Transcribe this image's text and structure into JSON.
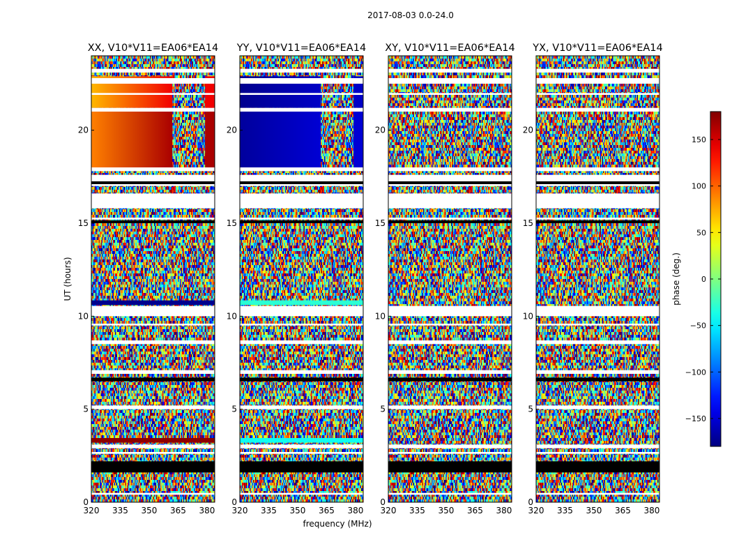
{
  "chart_data": {
    "type": "heatmap",
    "suptitle": "2017-08-03 0.0-24.0",
    "xlabel": "frequency (MHz)",
    "ylabel": "UT (hours)",
    "xlim": [
      320,
      384
    ],
    "ylim": [
      0,
      24
    ],
    "x_ticks": [
      320,
      335,
      350,
      365,
      380
    ],
    "y_ticks": [
      0,
      5,
      10,
      15,
      20
    ],
    "panels": [
      {
        "title": "XX, V10*V11=EA06*EA14",
        "segments": [
          {
            "y": [
              21.2,
              22.9
            ],
            "mode": "grad",
            "phase": [
              70,
              140
            ],
            "edge": 362
          },
          {
            "y": [
              17.8,
              21.0
            ],
            "mode": "grad",
            "phase": [
              90,
              165
            ],
            "edge": 362
          },
          {
            "y": [
              10.6,
              10.85
            ],
            "mode": "solid",
            "phase": -175
          },
          {
            "y": [
              3.2,
              3.45
            ],
            "mode": "solid",
            "phase": 175
          }
        ]
      },
      {
        "title": "YY, V10*V11=EA06*EA14",
        "segments": [
          {
            "y": [
              21.2,
              22.9
            ],
            "mode": "grad",
            "phase": [
              -175,
              -155
            ],
            "edge": 362
          },
          {
            "y": [
              17.8,
              21.0
            ],
            "mode": "grad",
            "phase": [
              -170,
              -150
            ],
            "edge": 362
          },
          {
            "y": [
              10.6,
              10.85
            ],
            "mode": "solid",
            "phase": -30
          },
          {
            "y": [
              3.2,
              3.45
            ],
            "mode": "solid",
            "phase": -40
          }
        ]
      },
      {
        "title": "XY, V10*V11=EA06*EA14",
        "segments": []
      },
      {
        "title": "YX, V10*V11=EA06*EA14",
        "segments": []
      }
    ],
    "flagged_rows": [
      [
        23.1,
        23.3
      ],
      [
        22.5,
        22.8
      ],
      [
        21.9,
        22.0
      ],
      [
        21.0,
        21.2
      ],
      [
        17.8,
        18.0
      ],
      [
        17.0,
        17.6
      ],
      [
        15.8,
        16.6
      ],
      [
        15.2,
        15.3
      ],
      [
        10.0,
        10.55
      ],
      [
        9.5,
        9.6
      ],
      [
        8.5,
        8.7
      ],
      [
        6.9,
        7.1
      ],
      [
        5.0,
        5.2
      ],
      [
        2.9,
        3.1
      ],
      [
        2.6,
        2.7
      ],
      [
        0.4,
        0.5
      ]
    ],
    "black_rows": [
      [
        1.6,
        2.2
      ],
      [
        6.5,
        6.7
      ],
      [
        17.1,
        17.25
      ],
      [
        15.0,
        15.15
      ]
    ],
    "colorbar": {
      "label": "phase (deg.)",
      "range": [
        -180,
        180
      ],
      "ticks": [
        150,
        100,
        50,
        0,
        -50,
        -100,
        -150
      ],
      "tick_labels": [
        "150",
        "100",
        "50",
        "0",
        "−50",
        "−100",
        "−150"
      ],
      "colormap": "jet"
    }
  }
}
